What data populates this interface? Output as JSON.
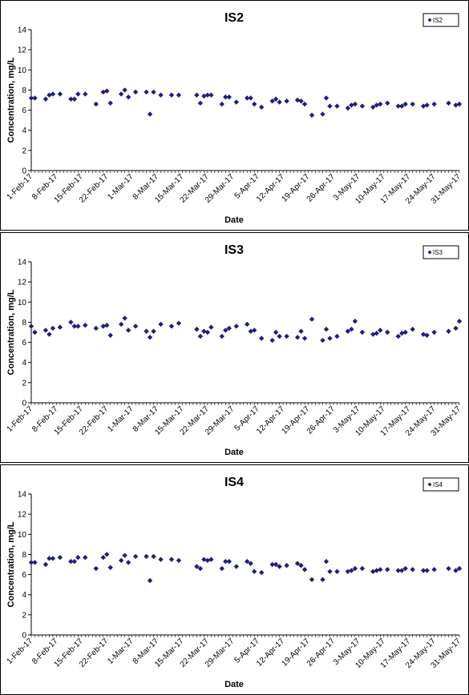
{
  "chart_data": [
    {
      "type": "scatter",
      "title": "IS2",
      "xlabel": "Date",
      "ylabel": "Concentration, mg/L",
      "ylim": [
        0,
        14
      ],
      "yticks": [
        "0",
        "2",
        "4",
        "6",
        "8",
        "10",
        "12",
        "14"
      ],
      "xticks": [
        "1-Feb-17",
        "8-Feb-17",
        "15-Feb-17",
        "22-Feb-17",
        "1-Mar-17",
        "8-Mar-17",
        "15-Mar-17",
        "22-Mar-17",
        "29-Mar-17",
        "5-Apr-17",
        "12-Apr-17",
        "19-Apr-17",
        "26-Apr-17",
        "3-May-17",
        "10-May-17",
        "17-May-17",
        "24-May-17",
        "31-May-17"
      ],
      "grid": false,
      "legend_position": "top-right",
      "marker_color": "#1f1f7a",
      "series": [
        {
          "name": "IS2",
          "x": [
            "2017-02-01",
            "2017-02-02",
            "2017-02-05",
            "2017-02-06",
            "2017-02-07",
            "2017-02-09",
            "2017-02-12",
            "2017-02-13",
            "2017-02-14",
            "2017-02-16",
            "2017-02-19",
            "2017-02-21",
            "2017-02-22",
            "2017-02-23",
            "2017-02-26",
            "2017-02-27",
            "2017-02-28",
            "2017-03-02",
            "2017-03-05",
            "2017-03-06",
            "2017-03-07",
            "2017-03-09",
            "2017-03-12",
            "2017-03-14",
            "2017-03-19",
            "2017-03-20",
            "2017-03-21",
            "2017-03-22",
            "2017-03-23",
            "2017-03-26",
            "2017-03-27",
            "2017-03-28",
            "2017-03-30",
            "2017-04-02",
            "2017-04-03",
            "2017-04-04",
            "2017-04-06",
            "2017-04-09",
            "2017-04-10",
            "2017-04-11",
            "2017-04-13",
            "2017-04-16",
            "2017-04-17",
            "2017-04-18",
            "2017-04-20",
            "2017-04-23",
            "2017-04-24",
            "2017-04-25",
            "2017-04-27",
            "2017-04-30",
            "2017-05-01",
            "2017-05-02",
            "2017-05-04",
            "2017-05-07",
            "2017-05-08",
            "2017-05-09",
            "2017-05-11",
            "2017-05-14",
            "2017-05-15",
            "2017-05-16",
            "2017-05-18",
            "2017-05-21",
            "2017-05-22",
            "2017-05-24",
            "2017-05-28",
            "2017-05-30",
            "2017-05-31"
          ],
          "y": [
            7.2,
            7.2,
            7.1,
            7.5,
            7.6,
            7.6,
            7.1,
            7.1,
            7.6,
            7.6,
            6.6,
            7.8,
            7.9,
            6.7,
            7.6,
            8.0,
            7.3,
            7.8,
            7.8,
            5.6,
            7.8,
            7.5,
            7.5,
            7.5,
            7.5,
            6.7,
            7.4,
            7.5,
            7.5,
            6.6,
            7.3,
            7.3,
            6.8,
            7.2,
            7.2,
            6.6,
            6.3,
            6.9,
            7.1,
            6.8,
            6.9,
            7.0,
            6.9,
            6.6,
            5.5,
            5.6,
            7.2,
            6.4,
            6.4,
            6.2,
            6.5,
            6.6,
            6.4,
            6.3,
            6.5,
            6.6,
            6.7,
            6.4,
            6.4,
            6.6,
            6.6,
            6.4,
            6.5,
            6.6,
            6.7,
            6.5,
            6.6
          ]
        }
      ]
    },
    {
      "type": "scatter",
      "title": "IS3",
      "xlabel": "Date",
      "ylabel": "Concentration, mg/L",
      "ylim": [
        0,
        14
      ],
      "yticks": [
        "0",
        "2",
        "4",
        "6",
        "8",
        "10",
        "12",
        "14"
      ],
      "xticks": [
        "1-Feb-17",
        "8-Feb-17",
        "15-Feb-17",
        "22-Feb-17",
        "1-Mar-17",
        "8-Mar-17",
        "15-Mar-17",
        "22-Mar-17",
        "29-Mar-17",
        "5-Apr-17",
        "12-Apr-17",
        "19-Apr-17",
        "26-Apr-17",
        "3-May-17",
        "10-May-17",
        "17-May-17",
        "24-May-17",
        "31-May-17"
      ],
      "grid": false,
      "legend_position": "top-right",
      "marker_color": "#1f1f7a",
      "series": [
        {
          "name": "IS3",
          "x": [
            "2017-02-01",
            "2017-02-02",
            "2017-02-05",
            "2017-02-06",
            "2017-02-07",
            "2017-02-09",
            "2017-02-12",
            "2017-02-13",
            "2017-02-14",
            "2017-02-16",
            "2017-02-19",
            "2017-02-21",
            "2017-02-22",
            "2017-02-23",
            "2017-02-26",
            "2017-02-27",
            "2017-02-28",
            "2017-03-02",
            "2017-03-05",
            "2017-03-06",
            "2017-03-07",
            "2017-03-09",
            "2017-03-12",
            "2017-03-14",
            "2017-03-19",
            "2017-03-20",
            "2017-03-21",
            "2017-03-22",
            "2017-03-23",
            "2017-03-26",
            "2017-03-27",
            "2017-03-28",
            "2017-03-30",
            "2017-04-02",
            "2017-04-03",
            "2017-04-04",
            "2017-04-06",
            "2017-04-09",
            "2017-04-10",
            "2017-04-11",
            "2017-04-13",
            "2017-04-16",
            "2017-04-17",
            "2017-04-18",
            "2017-04-20",
            "2017-04-23",
            "2017-04-24",
            "2017-04-25",
            "2017-04-27",
            "2017-04-30",
            "2017-05-01",
            "2017-05-02",
            "2017-05-04",
            "2017-05-07",
            "2017-05-08",
            "2017-05-09",
            "2017-05-11",
            "2017-05-14",
            "2017-05-15",
            "2017-05-16",
            "2017-05-18",
            "2017-05-21",
            "2017-05-22",
            "2017-05-24",
            "2017-05-28",
            "2017-05-30",
            "2017-05-31"
          ],
          "y": [
            7.6,
            7.0,
            7.2,
            6.8,
            7.4,
            7.5,
            8.0,
            7.6,
            7.6,
            7.7,
            7.4,
            7.6,
            7.7,
            6.7,
            7.8,
            8.4,
            7.2,
            7.6,
            7.1,
            6.5,
            7.1,
            7.8,
            7.6,
            7.9,
            7.3,
            6.6,
            7.1,
            7.0,
            7.5,
            6.6,
            7.2,
            7.4,
            7.6,
            7.8,
            7.1,
            7.2,
            6.4,
            6.2,
            7.0,
            6.6,
            6.6,
            6.5,
            7.1,
            6.4,
            8.3,
            6.2,
            7.3,
            6.4,
            6.6,
            7.1,
            7.3,
            8.1,
            7.0,
            6.8,
            6.9,
            7.2,
            7.0,
            6.6,
            6.9,
            7.0,
            7.3,
            6.8,
            6.7,
            7.0,
            7.1,
            7.4,
            8.1
          ]
        }
      ]
    },
    {
      "type": "scatter",
      "title": "IS4",
      "xlabel": "Date",
      "ylabel": "Concentration, mg/L",
      "ylim": [
        0,
        14
      ],
      "yticks": [
        "0",
        "2",
        "4",
        "6",
        "8",
        "10",
        "12",
        "14"
      ],
      "xticks": [
        "1-Feb-17",
        "8-Feb-17",
        "15-Feb-17",
        "22-Feb-17",
        "1-Mar-17",
        "8-Mar-17",
        "15-Mar-17",
        "22-Mar-17",
        "29-Mar-17",
        "5-Apr-17",
        "12-Apr-17",
        "19-Apr-17",
        "26-Apr-17",
        "3-May-17",
        "10-May-17",
        "17-May-17",
        "24-May-17",
        "31-May-17"
      ],
      "grid": false,
      "legend_position": "top-right",
      "marker_color": "#1f1f7a",
      "series": [
        {
          "name": "IS4",
          "x": [
            "2017-02-01",
            "2017-02-02",
            "2017-02-05",
            "2017-02-06",
            "2017-02-07",
            "2017-02-09",
            "2017-02-12",
            "2017-02-13",
            "2017-02-14",
            "2017-02-16",
            "2017-02-19",
            "2017-02-21",
            "2017-02-22",
            "2017-02-23",
            "2017-02-26",
            "2017-02-27",
            "2017-02-28",
            "2017-03-02",
            "2017-03-05",
            "2017-03-06",
            "2017-03-07",
            "2017-03-09",
            "2017-03-12",
            "2017-03-14",
            "2017-03-19",
            "2017-03-20",
            "2017-03-21",
            "2017-03-22",
            "2017-03-23",
            "2017-03-26",
            "2017-03-27",
            "2017-03-28",
            "2017-03-30",
            "2017-04-02",
            "2017-04-03",
            "2017-04-04",
            "2017-04-06",
            "2017-04-09",
            "2017-04-10",
            "2017-04-11",
            "2017-04-13",
            "2017-04-16",
            "2017-04-17",
            "2017-04-18",
            "2017-04-20",
            "2017-04-23",
            "2017-04-24",
            "2017-04-25",
            "2017-04-27",
            "2017-04-30",
            "2017-05-01",
            "2017-05-02",
            "2017-05-04",
            "2017-05-07",
            "2017-05-08",
            "2017-05-09",
            "2017-05-11",
            "2017-05-14",
            "2017-05-15",
            "2017-05-16",
            "2017-05-18",
            "2017-05-21",
            "2017-05-22",
            "2017-05-24",
            "2017-05-28",
            "2017-05-30",
            "2017-05-31"
          ],
          "y": [
            7.2,
            7.2,
            7.0,
            7.6,
            7.6,
            7.7,
            7.3,
            7.3,
            7.7,
            7.7,
            6.6,
            7.7,
            8.0,
            6.7,
            7.4,
            7.9,
            7.2,
            7.8,
            7.8,
            5.4,
            7.8,
            7.5,
            7.5,
            7.4,
            6.8,
            6.6,
            7.5,
            7.4,
            7.5,
            6.6,
            7.3,
            7.3,
            6.8,
            7.3,
            7.1,
            6.3,
            6.2,
            7.0,
            7.0,
            6.8,
            6.9,
            7.1,
            6.9,
            6.5,
            5.5,
            5.5,
            7.3,
            6.3,
            6.3,
            6.3,
            6.4,
            6.6,
            6.6,
            6.3,
            6.4,
            6.5,
            6.5,
            6.4,
            6.4,
            6.6,
            6.5,
            6.4,
            6.4,
            6.5,
            6.6,
            6.4,
            6.6
          ]
        }
      ]
    }
  ]
}
